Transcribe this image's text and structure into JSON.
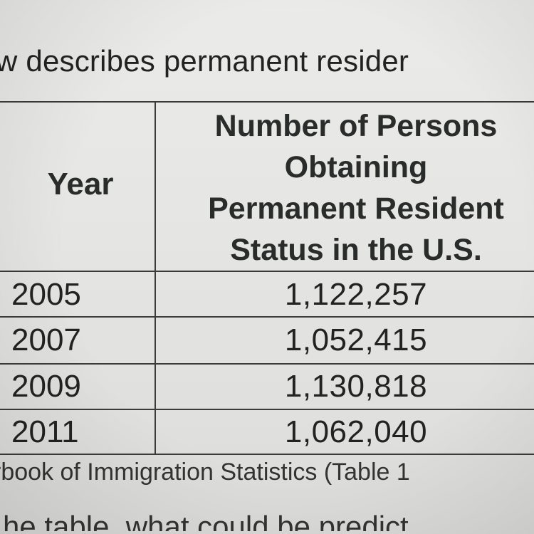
{
  "intro_text": "w describes permanent resider",
  "table": {
    "header_year": "Year",
    "header_count_lines": [
      "Number of Persons",
      "Obtaining",
      "Permanent Resident",
      "Status in the U.S."
    ],
    "rows": [
      {
        "year": "2005",
        "count": "1,122,257"
      },
      {
        "year": "2007",
        "count": "1,052,415"
      },
      {
        "year": "2009",
        "count": "1,130,818"
      },
      {
        "year": "2011",
        "count": "1,062,040"
      }
    ]
  },
  "source_text": "rbook of Immigration Statistics (Table 1",
  "question_text": "he table, what could be predict"
}
